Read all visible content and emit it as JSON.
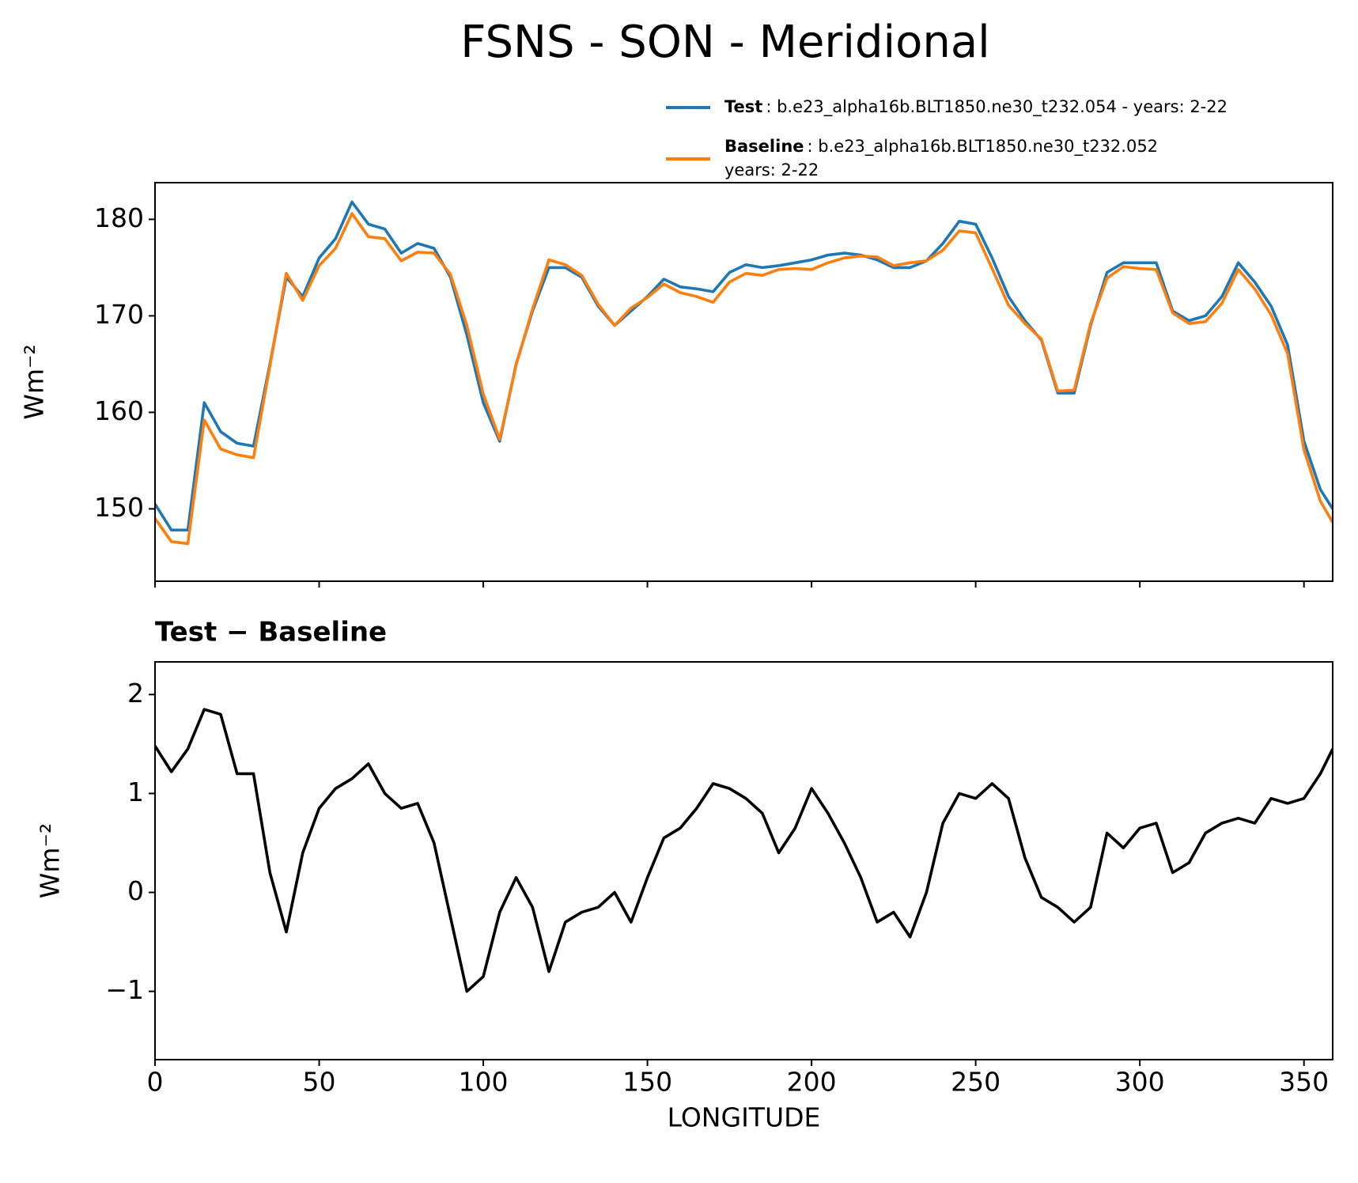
{
  "title": "FSNS - SON - Meridional",
  "chart_data": [
    {
      "type": "line",
      "ylabel": "Wm⁻²",
      "x": [
        0,
        5,
        10,
        15,
        20,
        25,
        30,
        35,
        40,
        45,
        50,
        55,
        60,
        65,
        70,
        75,
        80,
        85,
        90,
        95,
        100,
        105,
        110,
        115,
        120,
        125,
        130,
        135,
        140,
        145,
        150,
        155,
        160,
        165,
        170,
        175,
        180,
        185,
        190,
        195,
        200,
        205,
        210,
        215,
        220,
        225,
        230,
        235,
        240,
        245,
        250,
        255,
        260,
        265,
        270,
        275,
        280,
        285,
        290,
        295,
        300,
        305,
        310,
        315,
        320,
        325,
        330,
        335,
        340,
        345,
        350,
        355,
        358.75
      ],
      "series": [
        {
          "name": "Test",
          "label_lines": [
            ": b.e23_alpha16b.BLT1850.ne30_t232.054 - years: 2-22"
          ],
          "color": "#1f77b4",
          "values": [
            150.5,
            147.8,
            147.8,
            161,
            158,
            156.8,
            156.5,
            165,
            174,
            172,
            176,
            178,
            181.8,
            179.5,
            179,
            176.5,
            177.5,
            177,
            174,
            168,
            161,
            157,
            165,
            170.5,
            175,
            175,
            174,
            171,
            169,
            170.5,
            172,
            173.8,
            173,
            172.8,
            172.5,
            174.5,
            175.3,
            175,
            175.2,
            175.5,
            175.8,
            176.3,
            176.5,
            176.3,
            175.8,
            175,
            175,
            175.7,
            177.5,
            179.8,
            179.5,
            176,
            172,
            169.5,
            167.5,
            162,
            162,
            169,
            174.5,
            175.5,
            175.5,
            175.5,
            170.5,
            169.5,
            170,
            172,
            175.5,
            173.5,
            171,
            167,
            157,
            152,
            150
          ]
        },
        {
          "name": "Baseline",
          "label_lines": [
            ": b.e23_alpha16b.BLT1850.ne30_t232.052",
            "years: 2-22"
          ],
          "color": "#ff7f0e",
          "values": [
            149.0,
            146.6,
            146.4,
            159.2,
            156.2,
            155.6,
            155.3,
            164.8,
            174.4,
            171.6,
            175.2,
            177.0,
            180.6,
            178.2,
            178.0,
            175.7,
            176.6,
            176.5,
            174.3,
            169.0,
            161.9,
            157.2,
            164.9,
            170.7,
            175.8,
            175.3,
            174.2,
            171.2,
            169.0,
            170.8,
            171.9,
            173.3,
            172.4,
            172.0,
            171.4,
            173.5,
            174.4,
            174.2,
            174.8,
            174.9,
            174.8,
            175.5,
            176.0,
            176.2,
            176.1,
            175.2,
            175.5,
            175.7,
            176.8,
            178.8,
            178.6,
            174.9,
            171.1,
            169.2,
            167.6,
            162.2,
            162.3,
            169.2,
            173.9,
            175.1,
            174.9,
            174.8,
            170.3,
            169.2,
            169.4,
            171.3,
            174.8,
            172.8,
            170.1,
            166.1,
            156.1,
            150.8,
            148.6
          ]
        }
      ],
      "xlim": [
        0,
        358.75
      ],
      "xticks": [
        0,
        50,
        100,
        150,
        200,
        250,
        300,
        350
      ],
      "xtick_labels": false,
      "ylim": [
        142.5,
        183.8
      ],
      "yticks": [
        150,
        160,
        170,
        180
      ],
      "legend": "upper right"
    },
    {
      "type": "line",
      "title": "Test − Baseline",
      "ylabel": "Wm⁻²",
      "xlabel": "LONGITUDE",
      "x": [
        0,
        5,
        10,
        15,
        20,
        25,
        30,
        35,
        40,
        45,
        50,
        55,
        60,
        65,
        70,
        75,
        80,
        85,
        90,
        95,
        100,
        105,
        110,
        115,
        120,
        125,
        130,
        135,
        140,
        145,
        150,
        155,
        160,
        165,
        170,
        175,
        180,
        185,
        190,
        195,
        200,
        205,
        210,
        215,
        220,
        225,
        230,
        235,
        240,
        245,
        250,
        255,
        260,
        265,
        270,
        275,
        280,
        285,
        290,
        295,
        300,
        305,
        310,
        315,
        320,
        325,
        330,
        335,
        340,
        345,
        350,
        355,
        358.75
      ],
      "series": [
        {
          "color": "#000000",
          "values": [
            1.48,
            1.22,
            1.45,
            1.85,
            1.8,
            1.2,
            1.2,
            0.2,
            -0.4,
            0.4,
            0.85,
            1.05,
            1.15,
            1.3,
            1.0,
            0.85,
            0.9,
            0.5,
            -0.25,
            -1.0,
            -0.85,
            -0.2,
            0.15,
            -0.15,
            -0.8,
            -0.3,
            -0.2,
            -0.15,
            0.0,
            -0.3,
            0.15,
            0.55,
            0.65,
            0.85,
            1.1,
            1.05,
            0.95,
            0.8,
            0.4,
            0.65,
            1.05,
            0.8,
            0.5,
            0.15,
            -0.3,
            -0.2,
            -0.45,
            0.0,
            0.7,
            1.0,
            0.95,
            1.1,
            0.95,
            0.35,
            -0.05,
            -0.15,
            -0.3,
            -0.15,
            0.6,
            0.45,
            0.65,
            0.7,
            0.2,
            0.3,
            0.6,
            0.7,
            0.75,
            0.7,
            0.95,
            0.9,
            0.95,
            1.2,
            1.45
          ]
        }
      ],
      "xlim": [
        0,
        358.75
      ],
      "xticks": [
        0,
        50,
        100,
        150,
        200,
        250,
        300,
        350
      ],
      "xtick_labels": true,
      "ylim": [
        -1.69,
        2.33
      ],
      "yticks": [
        {
          "value": -1,
          "label": "−1"
        },
        0,
        1,
        2
      ]
    }
  ]
}
